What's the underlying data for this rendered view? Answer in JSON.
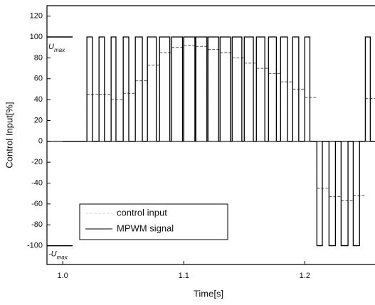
{
  "chart_data": {
    "type": "line",
    "xlabel": "Time[s]",
    "ylabel": "Control Input[%]",
    "xlim": [
      0.987,
      1.258
    ],
    "ylim": [
      -118,
      130
    ],
    "xticks": [
      {
        "value": 1,
        "label": "1.0"
      },
      1.1,
      1.2
    ],
    "yticks": [
      -100,
      -80,
      -60,
      -40,
      -20,
      0,
      20,
      40,
      60,
      80,
      100,
      120
    ],
    "grid": false,
    "legend": "lower left",
    "annotations": [
      {
        "text": "U",
        "subscript": "max",
        "value": 100
      },
      {
        "text": "-U",
        "subscript": "max",
        "value": -100
      }
    ],
    "series": [
      {
        "name": "control input",
        "color": "#555555",
        "style": "dashed",
        "width": 0.01,
        "x": [
          1.02,
          1.03,
          1.04,
          1.05,
          1.06,
          1.07,
          1.08,
          1.09,
          1.1,
          1.11,
          1.12,
          1.13,
          1.14,
          1.15,
          1.16,
          1.17,
          1.18,
          1.19,
          1.2,
          1.21,
          1.22,
          1.23,
          1.24,
          1.25
        ],
        "values": [
          45,
          45,
          40,
          46,
          58,
          73,
          85,
          90,
          92,
          91,
          88,
          85,
          80,
          75,
          70,
          65,
          57,
          50,
          42,
          -45,
          -53,
          -57,
          -52,
          41
        ]
      },
      {
        "name": "MPWM signal",
        "color": "#000000",
        "style": "solid",
        "x": [
          1.0,
          1.02,
          1.02,
          1.0245,
          1.0245,
          1.03,
          1.03,
          1.0345,
          1.0345,
          1.04,
          1.04,
          1.044,
          1.044,
          1.05,
          1.05,
          1.0546,
          1.0546,
          1.06,
          1.06,
          1.0658,
          1.0658,
          1.07,
          1.07,
          1.0773,
          1.0773,
          1.08,
          1.08,
          1.0885,
          1.0885,
          1.09,
          1.09,
          1.099,
          1.099,
          1.1,
          1.1,
          1.1092,
          1.1092,
          1.11,
          1.11,
          1.1191,
          1.1191,
          1.12,
          1.12,
          1.1288,
          1.1288,
          1.13,
          1.13,
          1.1385,
          1.1385,
          1.14,
          1.14,
          1.148,
          1.148,
          1.15,
          1.15,
          1.1575,
          1.1575,
          1.16,
          1.16,
          1.167,
          1.167,
          1.17,
          1.17,
          1.1765,
          1.1765,
          1.18,
          1.18,
          1.1857,
          1.1857,
          1.19,
          1.19,
          1.195,
          1.195,
          1.2,
          1.2,
          1.2042,
          1.2042,
          1.21,
          1.21,
          1.2145,
          1.2145,
          1.22,
          1.22,
          1.2253,
          1.2253,
          1.23,
          1.23,
          1.2357,
          1.2357,
          1.24,
          1.24,
          1.2452,
          1.2452,
          1.25,
          1.25,
          1.2541,
          1.2541,
          1.258
        ],
        "values": [
          0,
          0,
          100,
          100,
          0,
          0,
          100,
          100,
          0,
          0,
          100,
          100,
          0,
          0,
          100,
          100,
          0,
          0,
          100,
          100,
          0,
          0,
          100,
          100,
          0,
          0,
          100,
          100,
          0,
          0,
          100,
          100,
          0,
          0,
          100,
          100,
          0,
          0,
          100,
          100,
          0,
          0,
          100,
          100,
          0,
          0,
          100,
          100,
          0,
          0,
          100,
          100,
          0,
          0,
          100,
          100,
          0,
          0,
          100,
          100,
          0,
          0,
          100,
          100,
          0,
          0,
          100,
          100,
          0,
          0,
          100,
          100,
          0,
          0,
          100,
          100,
          0,
          0,
          -100,
          -100,
          0,
          0,
          -100,
          -100,
          0,
          0,
          -100,
          -100,
          0,
          0,
          -100,
          -100,
          0,
          0,
          100,
          100,
          0,
          0
        ]
      }
    ]
  }
}
